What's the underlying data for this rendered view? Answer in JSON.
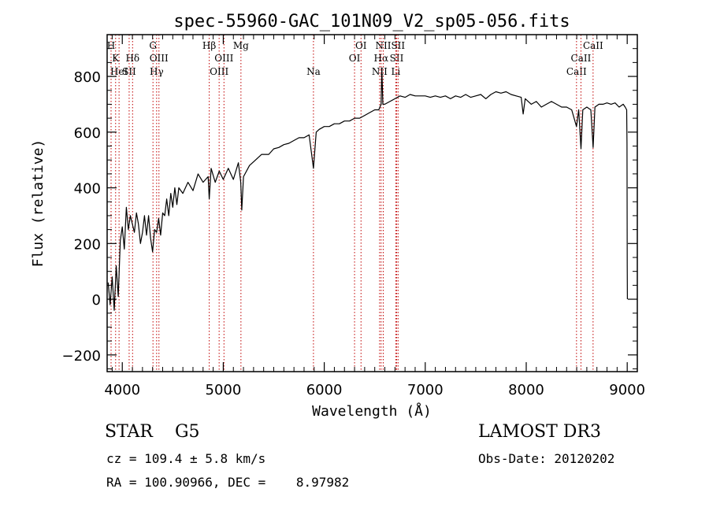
{
  "chart_data": {
    "type": "line",
    "title": "spec-55960-GAC_101N09_V2_sp05-056.fits",
    "xlabel": "Wavelength (Å)",
    "ylabel": "Flux (relative)",
    "xlim": [
      3850,
      9100
    ],
    "ylim": [
      -260,
      950
    ],
    "x_ticks": [
      4000,
      5000,
      6000,
      7000,
      8000,
      9000
    ],
    "y_ticks": [
      -200,
      0,
      200,
      400,
      600,
      800
    ],
    "grid": false,
    "series": [
      {
        "name": "flux",
        "color": "#000000",
        "points": [
          [
            3860,
            60
          ],
          [
            3880,
            -20
          ],
          [
            3900,
            80
          ],
          [
            3920,
            -40
          ],
          [
            3940,
            120
          ],
          [
            3960,
            10
          ],
          [
            3980,
            210
          ],
          [
            4000,
            260
          ],
          [
            4020,
            180
          ],
          [
            4040,
            330
          ],
          [
            4060,
            250
          ],
          [
            4080,
            300
          ],
          [
            4100,
            270
          ],
          [
            4120,
            240
          ],
          [
            4140,
            310
          ],
          [
            4160,
            270
          ],
          [
            4180,
            200
          ],
          [
            4200,
            240
          ],
          [
            4220,
            300
          ],
          [
            4240,
            230
          ],
          [
            4260,
            300
          ],
          [
            4280,
            220
          ],
          [
            4300,
            170
          ],
          [
            4320,
            250
          ],
          [
            4340,
            240
          ],
          [
            4360,
            290
          ],
          [
            4380,
            230
          ],
          [
            4400,
            310
          ],
          [
            4420,
            300
          ],
          [
            4440,
            360
          ],
          [
            4460,
            300
          ],
          [
            4480,
            380
          ],
          [
            4500,
            330
          ],
          [
            4520,
            400
          ],
          [
            4540,
            340
          ],
          [
            4560,
            400
          ],
          [
            4600,
            380
          ],
          [
            4650,
            420
          ],
          [
            4700,
            390
          ],
          [
            4750,
            450
          ],
          [
            4800,
            420
          ],
          [
            4850,
            440
          ],
          [
            4861,
            360
          ],
          [
            4880,
            470
          ],
          [
            4920,
            420
          ],
          [
            4960,
            460
          ],
          [
            5000,
            430
          ],
          [
            5050,
            470
          ],
          [
            5100,
            430
          ],
          [
            5150,
            490
          ],
          [
            5173,
            420
          ],
          [
            5183,
            320
          ],
          [
            5200,
            440
          ],
          [
            5260,
            480
          ],
          [
            5320,
            500
          ],
          [
            5380,
            520
          ],
          [
            5450,
            520
          ],
          [
            5500,
            540
          ],
          [
            5550,
            545
          ],
          [
            5600,
            555
          ],
          [
            5650,
            560
          ],
          [
            5700,
            570
          ],
          [
            5750,
            580
          ],
          [
            5800,
            580
          ],
          [
            5850,
            590
          ],
          [
            5893,
            470
          ],
          [
            5920,
            600
          ],
          [
            5950,
            610
          ],
          [
            6000,
            620
          ],
          [
            6050,
            620
          ],
          [
            6100,
            630
          ],
          [
            6150,
            630
          ],
          [
            6200,
            640
          ],
          [
            6250,
            640
          ],
          [
            6300,
            650
          ],
          [
            6350,
            650
          ],
          [
            6400,
            660
          ],
          [
            6450,
            670
          ],
          [
            6500,
            680
          ],
          [
            6540,
            680
          ],
          [
            6563,
            700
          ],
          [
            6570,
            830
          ],
          [
            6580,
            700
          ],
          [
            6600,
            700
          ],
          [
            6650,
            710
          ],
          [
            6700,
            720
          ],
          [
            6750,
            730
          ],
          [
            6800,
            725
          ],
          [
            6850,
            735
          ],
          [
            6900,
            730
          ],
          [
            6950,
            730
          ],
          [
            7000,
            730
          ],
          [
            7050,
            725
          ],
          [
            7100,
            730
          ],
          [
            7150,
            725
          ],
          [
            7200,
            730
          ],
          [
            7250,
            720
          ],
          [
            7300,
            730
          ],
          [
            7350,
            725
          ],
          [
            7400,
            735
          ],
          [
            7450,
            725
          ],
          [
            7500,
            730
          ],
          [
            7550,
            735
          ],
          [
            7600,
            720
          ],
          [
            7650,
            735
          ],
          [
            7700,
            745
          ],
          [
            7750,
            740
          ],
          [
            7800,
            745
          ],
          [
            7850,
            735
          ],
          [
            7900,
            730
          ],
          [
            7950,
            725
          ],
          [
            7970,
            665
          ],
          [
            7990,
            720
          ],
          [
            8050,
            700
          ],
          [
            8100,
            710
          ],
          [
            8150,
            690
          ],
          [
            8200,
            700
          ],
          [
            8250,
            710
          ],
          [
            8300,
            700
          ],
          [
            8350,
            690
          ],
          [
            8400,
            690
          ],
          [
            8450,
            680
          ],
          [
            8498,
            620
          ],
          [
            8520,
            680
          ],
          [
            8542,
            540
          ],
          [
            8560,
            680
          ],
          [
            8600,
            690
          ],
          [
            8640,
            680
          ],
          [
            8662,
            545
          ],
          [
            8680,
            690
          ],
          [
            8720,
            700
          ],
          [
            8760,
            700
          ],
          [
            8800,
            705
          ],
          [
            8840,
            700
          ],
          [
            8880,
            705
          ],
          [
            8920,
            690
          ],
          [
            8960,
            700
          ],
          [
            8980,
            690
          ],
          [
            8995,
            680
          ],
          [
            8998,
            560
          ],
          [
            9000,
            120
          ],
          [
            9002,
            0
          ]
        ]
      }
    ],
    "lines_style": {
      "color": "#c00000",
      "style": "dotted"
    },
    "lines": [
      {
        "wave": 3889,
        "row": 0,
        "label": "H"
      },
      {
        "wave": 3934,
        "row": 1,
        "label": "K"
      },
      {
        "wave": 3968,
        "row": 2,
        "label": "HeI"
      },
      {
        "wave": 4068,
        "row": 2,
        "label": "SII"
      },
      {
        "wave": 4102,
        "row": 1,
        "label": "Hδ"
      },
      {
        "wave": 4304,
        "row": 0,
        "label": "G"
      },
      {
        "wave": 4340,
        "row": 2,
        "label": "Hγ"
      },
      {
        "wave": 4363,
        "row": 1,
        "label": "OIII"
      },
      {
        "wave": 4861,
        "row": 0,
        "label": "Hβ"
      },
      {
        "wave": 4959,
        "row": 2,
        "label": "OIII"
      },
      {
        "wave": 5007,
        "row": 1,
        "label": "OIII"
      },
      {
        "wave": 5175,
        "row": 0,
        "label": "Mg"
      },
      {
        "wave": 5893,
        "row": 2,
        "label": "Na"
      },
      {
        "wave": 6300,
        "row": 1,
        "label": "OI"
      },
      {
        "wave": 6364,
        "row": 0,
        "label": "OI"
      },
      {
        "wave": 6548,
        "row": 2,
        "label": "NII"
      },
      {
        "wave": 6563,
        "row": 1,
        "label": "Hα"
      },
      {
        "wave": 6584,
        "row": 0,
        "label": "NII"
      },
      {
        "wave": 6708,
        "row": 2,
        "label": "Li"
      },
      {
        "wave": 6717,
        "row": 1,
        "label": "SII"
      },
      {
        "wave": 6731,
        "row": 0,
        "label": "SII"
      },
      {
        "wave": 8498,
        "row": 2,
        "label": "CaII"
      },
      {
        "wave": 8542,
        "row": 1,
        "label": "CaII"
      },
      {
        "wave": 8662,
        "row": 0,
        "label": "CaII"
      }
    ]
  },
  "footer": {
    "class_text": "STAR    G5",
    "cz_text": "cz = 109.4 ± 5.8 km/s",
    "radec_text": "RA = 100.90966, DEC =    8.97982",
    "survey_text": "LAMOST DR3",
    "obs_date_text": "Obs-Date: 20120202"
  }
}
